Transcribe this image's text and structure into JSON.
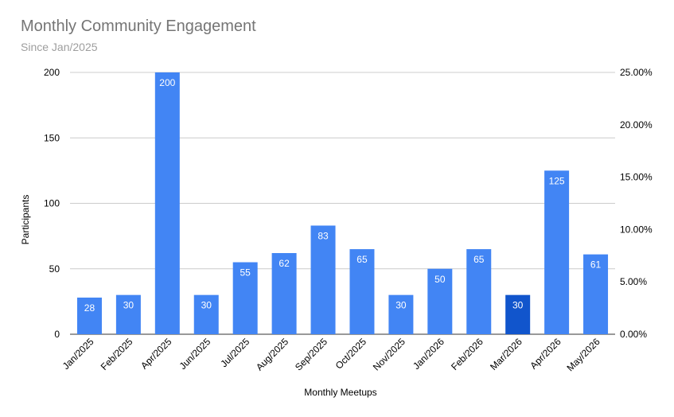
{
  "chart_data": {
    "type": "bar",
    "title": "Monthly Community Engagement",
    "subtitle": "Since Jan/2025",
    "xlabel": "Monthly Meetups",
    "ylabel": "Participants",
    "categories": [
      "Jan/2025",
      "Feb/2025",
      "Apr/2025",
      "Jun/2025",
      "Jul/2025",
      "Aug/2025",
      "Sep/2025",
      "Oct/2025",
      "Nov/2025",
      "Jan/2026",
      "Feb/2026",
      "Mar/2026",
      "Apr/2026",
      "May/2026"
    ],
    "values": [
      28,
      30,
      200,
      30,
      55,
      62,
      83,
      65,
      30,
      50,
      65,
      30,
      125,
      61
    ],
    "highlight_index": 11,
    "ylim": [
      0,
      200
    ],
    "yticks": [
      0,
      50,
      100,
      150,
      200
    ],
    "y2ticks": [
      "0.00%",
      "5.00%",
      "10.00%",
      "15.00%",
      "20.00%",
      "25.00%"
    ],
    "grid": true,
    "legend": "none",
    "colors": {
      "bar": "#4285f4",
      "highlight": "#1155cc",
      "grid": "#cccccc",
      "title": "#757575",
      "subtitle": "#9e9e9e"
    }
  }
}
